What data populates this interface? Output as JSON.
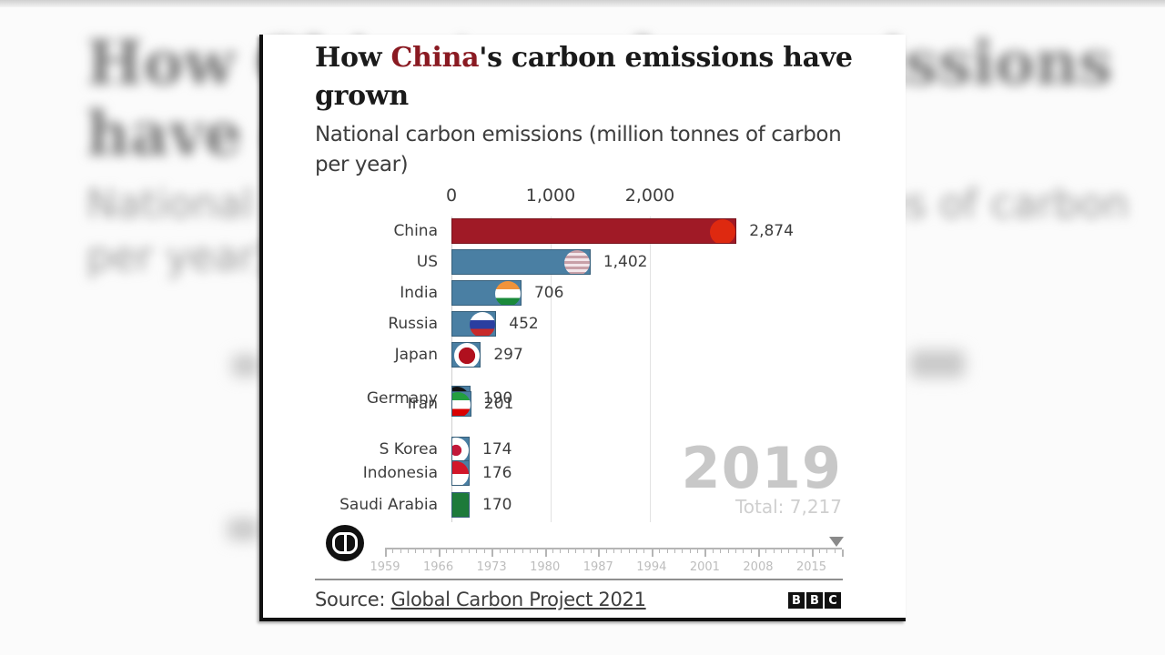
{
  "background": {
    "blurred_title": "How China's carbon emissions have grown",
    "blurred_subtitle": "National carbon emissions (million tonnes of carbon per year)"
  },
  "card": {
    "title_prefix": "How ",
    "title_highlight": "China",
    "title_suffix": "'s carbon emissions have grown",
    "subtitle": "National carbon emissions (million tonnes of carbon per year)",
    "year": "2019",
    "total_label": "Total: 7,217",
    "source_prefix": "Source: ",
    "source_link": "Global Carbon Project 2021",
    "brand": [
      "B",
      "B",
      "C"
    ],
    "play_state": "pause-icon"
  },
  "timeline": {
    "labels": [
      "1959",
      "1966",
      "1973",
      "1980",
      "1987",
      "1994",
      "2001",
      "2008",
      "2015"
    ],
    "current_year": "2019"
  },
  "colors": {
    "china_bar": "#a01a26",
    "other_bar": "#4a7fa3",
    "title_highlight": "#8a1a22"
  },
  "chart_data": {
    "type": "bar",
    "orientation": "horizontal",
    "title": "How China's carbon emissions have grown",
    "subtitle": "National carbon emissions (million tonnes of carbon per year)",
    "xlabel": "",
    "ylabel": "",
    "x_ticks": [
      "0",
      "1,000",
      "2,000"
    ],
    "xlim": [
      0,
      3000
    ],
    "grid": true,
    "year": 2019,
    "total": 7217,
    "categories": [
      "China",
      "US",
      "India",
      "Russia",
      "Japan",
      "Germany",
      "Iran",
      "S Korea",
      "Indonesia",
      "Saudi Arabia"
    ],
    "values": [
      2874,
      1402,
      706,
      452,
      297,
      190,
      201,
      174,
      176,
      170
    ],
    "value_labels": [
      "2,874",
      "1,402",
      "706",
      "452",
      "297",
      "190",
      "201",
      "174",
      "176",
      "170"
    ],
    "source": "Global Carbon Project 2021",
    "animation_timeline": [
      "1959",
      "1966",
      "1973",
      "1980",
      "1987",
      "1994",
      "2001",
      "2008",
      "2015"
    ]
  }
}
